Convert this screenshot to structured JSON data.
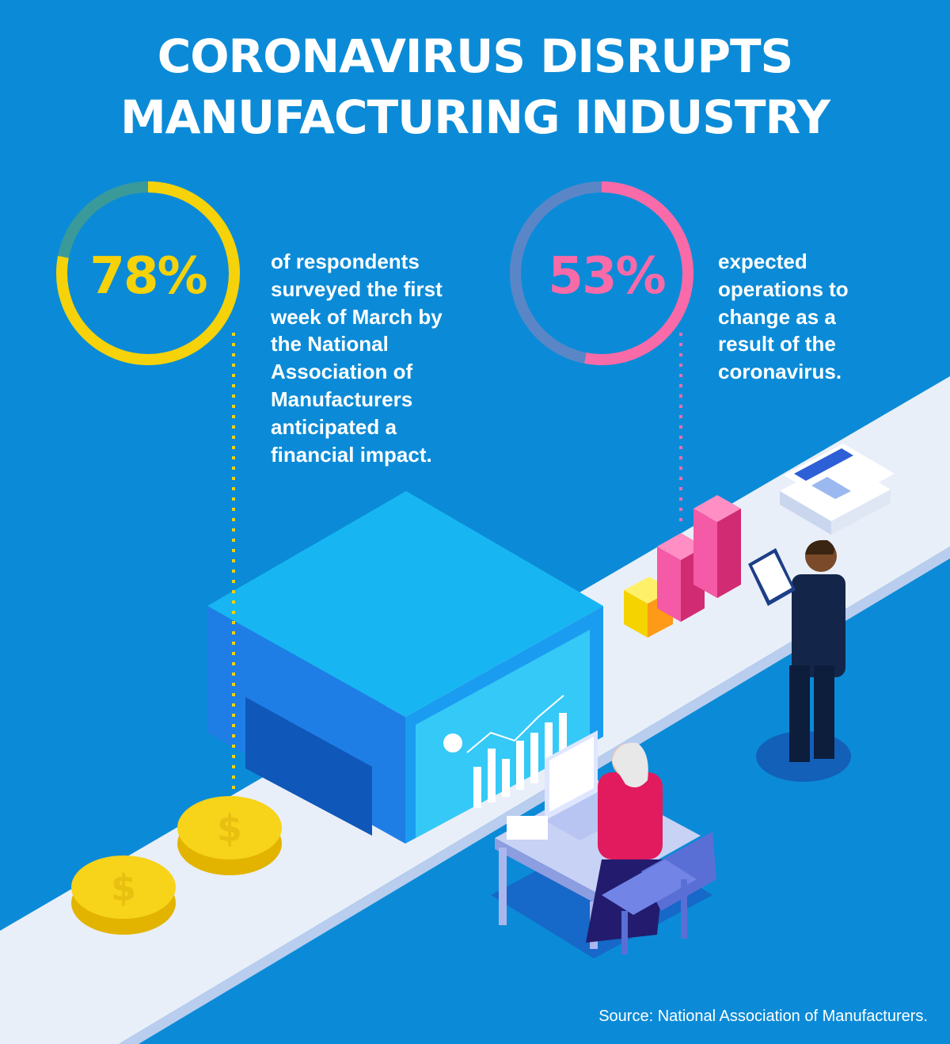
{
  "title": {
    "line1": "CORONAVIRUS DISRUPTS",
    "line2": "MANUFACTURING INDUSTRY"
  },
  "stats": [
    {
      "value": "78%",
      "fraction": 0.78,
      "color": "#f5d20a",
      "lines": [
        "of respondents",
        "surveyed the first",
        "week of March by",
        "the National",
        "Association of",
        "Manufacturers",
        "anticipated a",
        "financial impact."
      ]
    },
    {
      "value": "53%",
      "fraction": 0.53,
      "color": "#f86aa8",
      "lines": [
        "expected",
        "operations to",
        "change as a",
        "result of the",
        "coronavirus."
      ]
    }
  ],
  "source": "Source: National Association of Manufacturers.",
  "colors": {
    "background": "#0b8bd7",
    "ring1_track": "#3a9a9a",
    "ring2_track": "#5a86c8",
    "belt": "#e8eef8"
  },
  "icons": {
    "coin_glyph": "$"
  }
}
